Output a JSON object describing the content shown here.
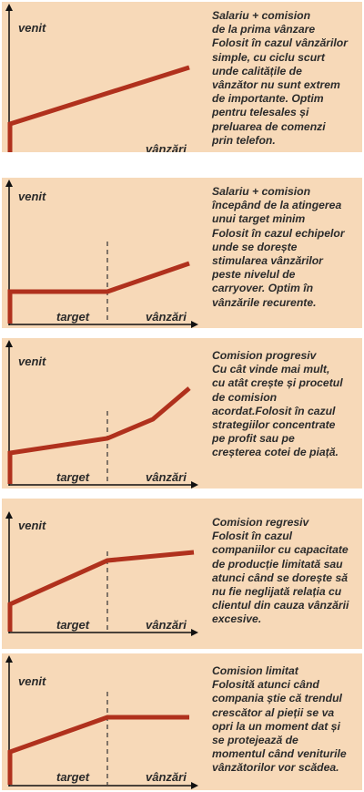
{
  "colors": {
    "panel_bg": "#f7d9b8",
    "curve": "#b0311d",
    "axis": "#111111"
  },
  "panels": [
    {
      "y_label": "venit",
      "x_label": "vânzări",
      "target_label": "",
      "lines": [
        "Salariu + comision",
        "de la prima vânzare",
        "Folosit în cazul vânzărilor",
        "simple, cu ciclu scurt",
        "unde calitățile de",
        "vânzător nu sunt extrem",
        "de importante. Optim",
        "pentru telesales și",
        "preluarea de comenzi",
        "prin telefon."
      ]
    },
    {
      "y_label": "venit",
      "x_label": "vânzări",
      "target_label": "target",
      "lines": [
        "Salariu + comision",
        "începând de la atingerea",
        "unui target minim",
        "Folosit în cazul echipelor",
        "unde se dorește",
        "stimularea vânzărilor",
        "peste nivelul de",
        "carryover. Optim în",
        "vânzările recurente."
      ]
    },
    {
      "y_label": "venit",
      "x_label": "vânzări",
      "target_label": "target",
      "lines": [
        "Comision progresiv",
        "Cu cât vinde mai mult,",
        "cu atât crește și procetul",
        "de comision",
        "acordat.Folosit în cazul",
        "strategiilor concentrate",
        "pe profit sau pe",
        "creșterea cotei de piață."
      ]
    },
    {
      "y_label": "venit",
      "x_label": "vânzări",
      "target_label": "target",
      "lines": [
        "Comision regresiv",
        "Folosit în cazul",
        "companiilor cu capacitate",
        "de producție limitată sau",
        "atunci când se dorește să",
        "nu fie neglijată relația cu",
        "clientul din cauza vânzării",
        "excesive."
      ]
    },
    {
      "y_label": "venit",
      "x_label": "vânzări",
      "target_label": "target",
      "lines": [
        "Comision limitat",
        "Folosită atunci când",
        "compania știe că trendul",
        "crescător al pieții se va",
        "opri la un moment dat și",
        "se protejează de",
        "momentul când veniturile",
        "vânzătorilor vor scădea."
      ]
    }
  ]
}
